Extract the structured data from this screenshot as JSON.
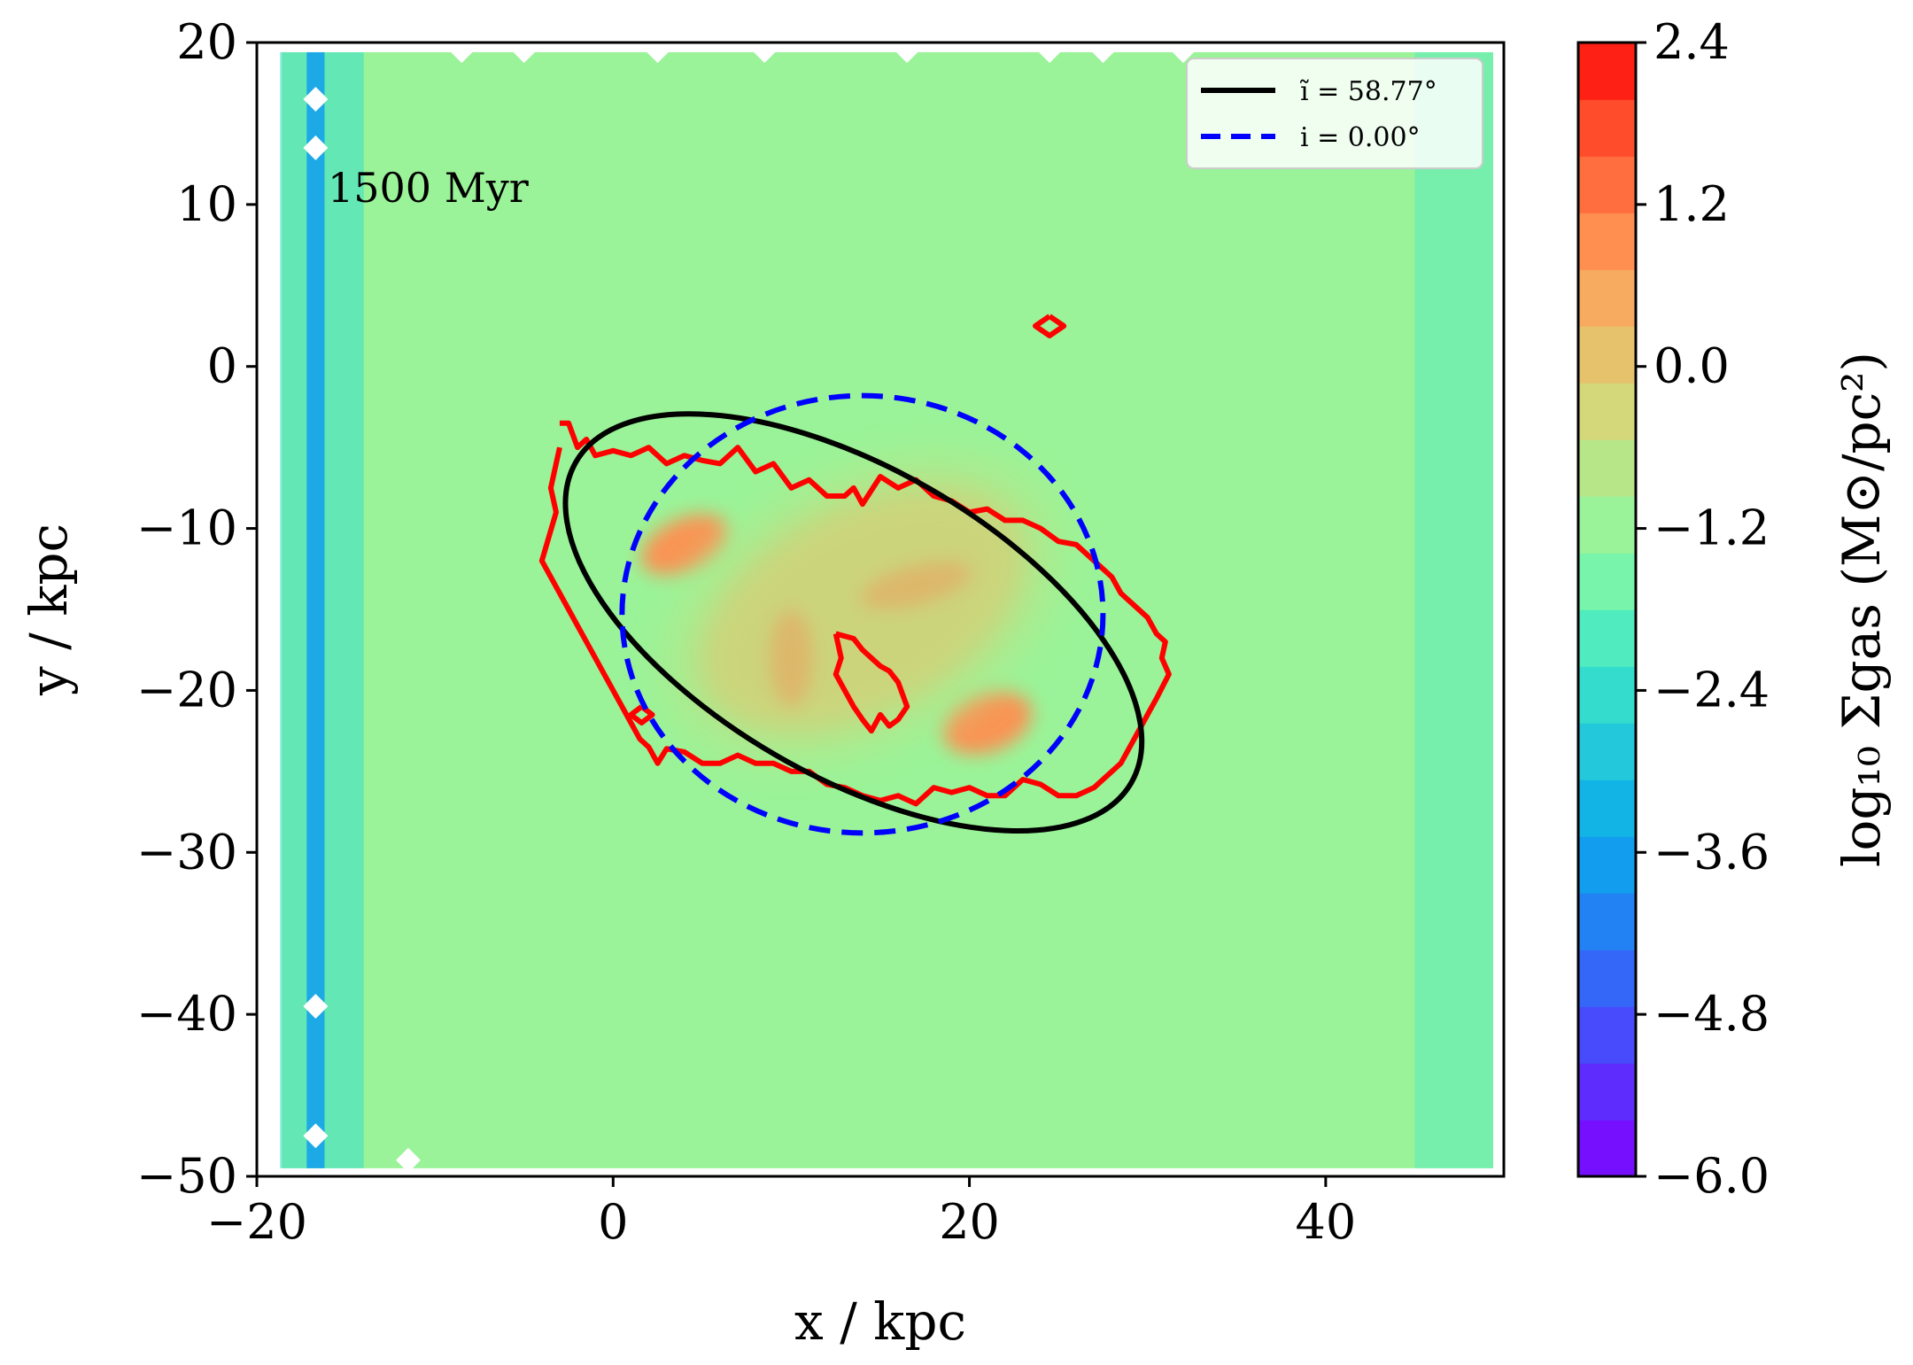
{
  "chart_data": {
    "type": "heatmap",
    "title": "",
    "annotation": "1500 Myr",
    "xlabel": "x / kpc",
    "ylabel": "y / kpc",
    "xlim": [
      -20,
      50
    ],
    "ylim": [
      -50,
      20
    ],
    "x_ticks": [
      -20,
      0,
      20,
      40
    ],
    "y_ticks": [
      -50,
      -40,
      -30,
      -20,
      -10,
      0,
      10,
      20
    ],
    "x_tick_labels": [
      "−20",
      "0",
      "20",
      "40"
    ],
    "y_tick_labels": [
      "−50",
      "−40",
      "−30",
      "−20",
      "−10",
      "0",
      "10",
      "20"
    ],
    "colorbar": {
      "label": "log₁₀ Σgas (M⊙/pc²)",
      "range": [
        -6.0,
        2.4
      ],
      "ticks": [
        2.4,
        1.2,
        0.0,
        -1.2,
        -2.4,
        -3.6,
        -4.8,
        -6.0
      ],
      "tick_labels": [
        "2.4",
        "1.2",
        "0.0",
        "−1.2",
        "−2.4",
        "−3.6",
        "−4.8",
        "−6.0"
      ],
      "levels": 21,
      "cmap": "rainbow"
    },
    "background_level": -1.2,
    "density_blobs": [
      {
        "x": 14,
        "y": -15,
        "sx": 10,
        "sy": 6.5,
        "rot": -28,
        "value": 0.0
      },
      {
        "x": 4,
        "y": -11,
        "sx": 2.6,
        "sy": 1.6,
        "rot": -25,
        "value": 1.0
      },
      {
        "x": 10,
        "y": -18,
        "sx": 1.2,
        "sy": 3.0,
        "rot": 0,
        "value": 0.8
      },
      {
        "x": 17,
        "y": -13.5,
        "sx": 3.2,
        "sy": 1.2,
        "rot": -15,
        "value": 0.9
      },
      {
        "x": 21,
        "y": -22,
        "sx": 2.6,
        "sy": 1.8,
        "rot": -20,
        "value": 0.9
      }
    ],
    "series": [
      {
        "name": "contour",
        "color": "#ff0000",
        "x": [
          -3,
          -2.5,
          -2,
          -1.5,
          -1,
          0,
          1,
          2,
          2.5,
          3,
          4,
          5,
          6,
          7,
          8,
          9,
          10,
          11,
          12,
          13,
          13.5,
          14,
          15,
          16,
          17,
          18,
          19,
          20,
          21,
          22,
          23,
          24,
          25,
          26,
          27,
          28,
          28.5,
          29,
          29.5,
          30,
          30.5,
          31,
          30.8,
          31.2,
          30.5,
          30,
          29.5,
          29,
          28.5,
          28,
          27,
          26,
          25,
          24,
          23,
          22,
          21,
          20,
          19,
          18,
          17,
          16,
          15,
          14,
          13,
          12,
          11,
          10,
          9,
          8,
          7,
          6,
          5,
          4,
          3,
          2.5,
          2,
          1.5,
          1,
          0.5,
          0,
          -0.5,
          -1,
          -1.5,
          -2,
          -2.5,
          -3,
          -3.5,
          -4,
          -3.6,
          -3.2,
          -3.5,
          -3
        ],
        "y": [
          -3.5,
          -3.5,
          -5,
          -4.5,
          -5.5,
          -5.2,
          -5.5,
          -5.0,
          -5.5,
          -6.0,
          -5.5,
          -5.8,
          -6.0,
          -5.0,
          -6.5,
          -6.0,
          -7.5,
          -7.0,
          -8.0,
          -8.0,
          -7.5,
          -8.5,
          -6.8,
          -7.5,
          -7.0,
          -8.0,
          -8.3,
          -9.0,
          -8.8,
          -9.5,
          -9.5,
          -10.0,
          -10.8,
          -11.0,
          -12.0,
          -13.0,
          -14.0,
          -14.5,
          -15.0,
          -15.5,
          -16.5,
          -17.0,
          -18.0,
          -19.0,
          -20.5,
          -21.5,
          -22.5,
          -23.5,
          -24.5,
          -25.0,
          -26.0,
          -26.5,
          -26.5,
          -25.8,
          -25.5,
          -26.5,
          -26.5,
          -26.0,
          -26.3,
          -26.0,
          -27.0,
          -26.5,
          -26.8,
          -26.5,
          -26.0,
          -25.8,
          -25.0,
          -25.0,
          -24.5,
          -24.5,
          -24.0,
          -24.5,
          -24.5,
          -23.8,
          -23.6,
          -24.5,
          -23.5,
          -23.0,
          -22.0,
          -21.0,
          -20.0,
          -19.0,
          -18.0,
          -17.0,
          -16.0,
          -15.0,
          -14.0,
          -13.0,
          -12.0,
          -10.5,
          -9.0,
          -7.5,
          -5.0
        ]
      },
      {
        "name": "contour-inner",
        "color": "#ff0000",
        "x": [
          12.5,
          13.5,
          14,
          14.5,
          15,
          15.5,
          16,
          16.5,
          16,
          15.5,
          15,
          14.5,
          14,
          13.5,
          13,
          12.5,
          12.8,
          12.5
        ],
        "y": [
          -16.5,
          -16.8,
          -17.5,
          -18,
          -18.5,
          -18.8,
          -19.5,
          -21,
          -21.8,
          -22.2,
          -21.5,
          -22.5,
          -21.8,
          -21.0,
          -20.0,
          -19.0,
          -18.0,
          -16.5
        ]
      },
      {
        "name": "contour-blob-right",
        "color": "#ff0000",
        "x": [
          24.5,
          25.3,
          24.5,
          23.7,
          24.5
        ],
        "y": [
          3.1,
          2.5,
          1.9,
          2.5,
          3.1
        ]
      },
      {
        "name": "contour-blob-left",
        "color": "#ff0000",
        "x": [
          1.6,
          2.2,
          1.6,
          1.0,
          1.6
        ],
        "y": [
          -21.0,
          -21.5,
          -22.0,
          -21.5,
          -21.0
        ]
      },
      {
        "name": "ĩ = 58.77°",
        "type": "ellipse",
        "color": "#000000",
        "center": [
          13.5,
          -15.8
        ],
        "semi_major": 18.0,
        "semi_minor": 9.5,
        "angle_deg": -30
      },
      {
        "name": "i = 0.00°",
        "type": "circle",
        "color": "#0000ff",
        "dashed": true,
        "center": [
          14.0,
          -15.3
        ],
        "radius": 13.5
      }
    ],
    "legend": {
      "position": "upper right",
      "entries": [
        {
          "label": "ĩ = 58.77°",
          "color": "#000000",
          "style": "solid"
        },
        {
          "label": "i = 0.00°",
          "color": "#0000ff",
          "style": "dashed"
        }
      ]
    },
    "white_gap_diamonds": [
      {
        "x": -16.7,
        "y": 16.5
      },
      {
        "x": -16.7,
        "y": 13.5
      },
      {
        "x": -16.7,
        "y": -39.5
      },
      {
        "x": -16.7,
        "y": -47.5
      },
      {
        "x": -8.5,
        "y": 19.5
      },
      {
        "x": -5.0,
        "y": 19.5
      },
      {
        "x": 2.5,
        "y": 19.5
      },
      {
        "x": 8.5,
        "y": 19.5
      },
      {
        "x": 16.5,
        "y": 19.5
      },
      {
        "x": 24.5,
        "y": 19.5
      },
      {
        "x": 27.5,
        "y": 19.5
      },
      {
        "x": 32.0,
        "y": 19.5
      },
      {
        "x": -11.5,
        "y": -49.0
      }
    ]
  }
}
